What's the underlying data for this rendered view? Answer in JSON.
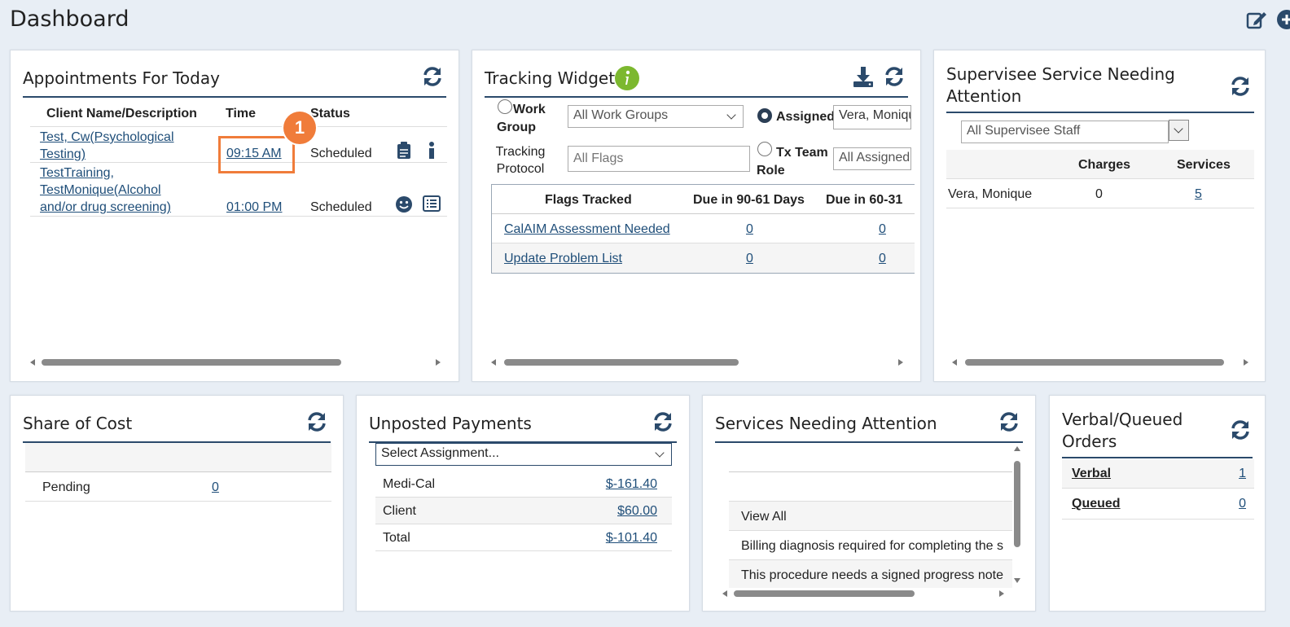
{
  "page": {
    "title": "Dashboard"
  },
  "appointments": {
    "title": "Appointments For Today",
    "headers": {
      "client": "Client Name/Description",
      "time": "Time",
      "status": "Status"
    },
    "rows": [
      {
        "client_line1": "Test, Cw(Psychological",
        "client_line2": "Testing)",
        "client_line3": "",
        "time": "09:15 AM",
        "status": "Scheduled"
      },
      {
        "client_line1": "TestTraining,",
        "client_line2": "TestMonique(Alcohol",
        "client_line3": "and/or drug screening)",
        "time": "01:00 PM",
        "status": "Scheduled"
      }
    ],
    "callout_number": "1"
  },
  "tracking": {
    "title": "Tracking Widget",
    "work_group_label": "Work Group",
    "work_group_value": "All Work Groups",
    "assigned_label": "Assigned",
    "assigned_value": "Vera, Moniqu",
    "protocol_label": "Tracking Protocol",
    "protocol_placeholder": "All Flags",
    "tx_team_label": "Tx Team Role",
    "tx_team_value": "All Assigned",
    "headers": {
      "flags": "Flags Tracked",
      "d90": "Due in 90-61 Days",
      "d60": "Due in 60-31"
    },
    "rows": [
      {
        "flag": "CalAIM Assessment Needed",
        "d90": "0",
        "d60": "0"
      },
      {
        "flag": "Update Problem List",
        "d90": "0",
        "d60": "0"
      }
    ]
  },
  "supervisee": {
    "title_line1": "Supervisee Service Needing",
    "title_line2": "Attention",
    "staff_value": "All Supervisee Staff",
    "headers": {
      "charges": "Charges",
      "services": "Services"
    },
    "rows": [
      {
        "name": "Vera, Monique",
        "charges": "0",
        "services": "5"
      }
    ]
  },
  "share_of_cost": {
    "title": "Share of Cost",
    "rows": [
      {
        "label": "Pending",
        "value": "0"
      }
    ]
  },
  "unposted": {
    "title": "Unposted Payments",
    "select_value": "Select Assignment...",
    "rows": [
      {
        "label": "Medi-Cal",
        "value": "$-161.40"
      },
      {
        "label": "Client",
        "value": "$60.00"
      },
      {
        "label": "Total",
        "value": "$-101.40"
      }
    ]
  },
  "services_attention": {
    "title": "Services Needing Attention",
    "view_all": "View All",
    "items": [
      "Billing diagnosis required for completing the s",
      "This procedure needs a signed progress note"
    ]
  },
  "orders": {
    "title_line1": "Verbal/Queued",
    "title_line2": "Orders",
    "rows": [
      {
        "label": "Verbal",
        "value": "1"
      },
      {
        "label": "Queued",
        "value": "0"
      }
    ]
  },
  "colors": {
    "accent": "#2b4a6b",
    "link": "#1f4e79",
    "callout": "#f07c3a",
    "info": "#7cb82f",
    "background": "#e8eef5"
  }
}
